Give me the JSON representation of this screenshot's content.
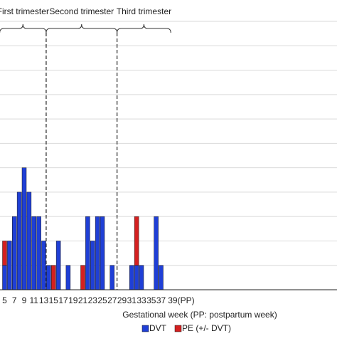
{
  "chart_data": {
    "type": "bar",
    "stacked": true,
    "xlabel": "Gestational week (PP: postpartum week)",
    "x_tick_labels": [
      "5",
      "7",
      "9",
      "11",
      "13",
      "15",
      "17",
      "19",
      "21",
      "23",
      "25",
      "27",
      "29",
      "31",
      "33",
      "35",
      "37",
      "39(PP)"
    ],
    "ylim": [
      0,
      11
    ],
    "grid": "horizontal",
    "legend_position": "bottom",
    "trimesters": [
      {
        "label": "First trimester",
        "start_week": 4,
        "end_week": 13.5
      },
      {
        "label": "Second trimester",
        "start_week": 13.5,
        "end_week": 28
      },
      {
        "label": "Third trimester",
        "start_week": 28,
        "end_week": 39
      }
    ],
    "trimester_dividers": [
      13.5,
      28
    ],
    "weeks": [
      5,
      6,
      7,
      8,
      9,
      10,
      11,
      12,
      13,
      14,
      15,
      16,
      17,
      18,
      19,
      20,
      21,
      22,
      23,
      24,
      25,
      26,
      27,
      28,
      29,
      30,
      31,
      32,
      33,
      34,
      35,
      36,
      37,
      38,
      39
    ],
    "series": [
      {
        "name": "DVT",
        "color": "#1f3fd6",
        "values": [
          1,
          2,
          3,
          4,
          5,
          4,
          3,
          3,
          2,
          1,
          0,
          2,
          0,
          1,
          0,
          0,
          0,
          3,
          2,
          3,
          3,
          0,
          1,
          0,
          0,
          0,
          1,
          1,
          1,
          0,
          0,
          3,
          1,
          0,
          0
        ]
      },
      {
        "name": "PE (+/- DVT)",
        "color": "#d42020",
        "values": [
          1,
          0,
          0,
          0,
          0,
          0,
          0,
          0,
          0,
          0,
          1,
          0,
          0,
          0,
          0,
          0,
          1,
          0,
          0,
          0,
          0,
          0,
          0,
          0,
          0,
          0,
          0,
          2,
          0,
          0,
          0,
          0,
          0,
          0,
          0
        ]
      }
    ]
  }
}
